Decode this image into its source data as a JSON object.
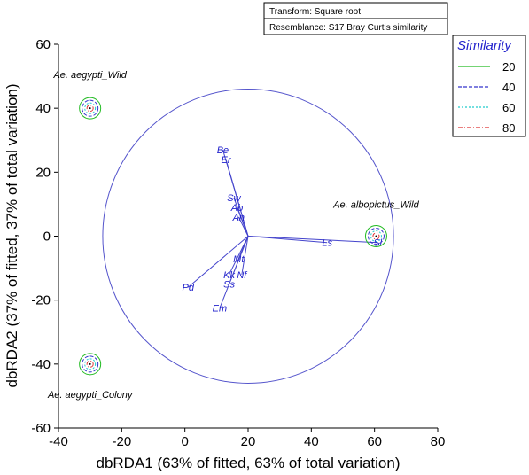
{
  "chart_data": {
    "type": "scatter",
    "title": "",
    "xlabel": "dbRDA1 (63% of fitted, 63% of total variation)",
    "ylabel": "dbRDA2 (37% of fitted, 37% of total variation)",
    "xlim": [
      -40,
      80
    ],
    "ylim": [
      -60,
      60
    ],
    "xticks": [
      -40,
      -20,
      0,
      20,
      40,
      60,
      80
    ],
    "yticks": [
      -60,
      -40,
      -20,
      0,
      20,
      40,
      60
    ],
    "info_box": [
      "Transform: Square root",
      "Resemblance: S17 Bray Curtis similarity"
    ],
    "legend": {
      "title": "Similarity",
      "placement": "top-right",
      "entries": [
        {
          "label": "20",
          "color": "#22bb22",
          "style": "solid"
        },
        {
          "label": "40",
          "color": "#3333cc",
          "style": "dashed"
        },
        {
          "label": "60",
          "color": "#22cccc",
          "style": "dotted"
        },
        {
          "label": "80",
          "color": "#dd3333",
          "style": "dashdot"
        }
      ]
    },
    "correlation_circle": {
      "center": [
        20,
        0
      ],
      "radius": 46,
      "color": "#5555cc"
    },
    "vector_origin": [
      20,
      0
    ],
    "points": [
      {
        "label": "Ae. aegypti_Wild",
        "x": -30,
        "y": 40
      },
      {
        "label": "Ae. albopictus_Wild",
        "x": 60.5,
        "y": 0
      },
      {
        "label": "Ae. aegypti_Colony",
        "x": -30,
        "y": -40
      }
    ],
    "vectors": [
      {
        "label": "Be",
        "x": 12,
        "y": 27
      },
      {
        "label": "Er",
        "x": 13,
        "y": 24
      },
      {
        "label": "Sw",
        "x": 15.5,
        "y": 12
      },
      {
        "label": "Ab",
        "x": 16.5,
        "y": 9
      },
      {
        "label": "An",
        "x": 17,
        "y": 6
      },
      {
        "label": "Ls",
        "x": 45,
        "y": -2
      },
      {
        "label": "Sl",
        "x": 61,
        "y": -2
      },
      {
        "label": "Mt",
        "x": 17,
        "y": -7
      },
      {
        "label": "Kk",
        "x": 14,
        "y": -12
      },
      {
        "label": "Nf",
        "x": 18,
        "y": -12
      },
      {
        "label": "Ss",
        "x": 14,
        "y": -15
      },
      {
        "label": "Pd",
        "x": 1,
        "y": -16
      },
      {
        "label": "Em",
        "x": 11,
        "y": -22.5
      }
    ],
    "colors": {
      "vector": "#4444cc",
      "vector_label": "#2222cc",
      "axis": "#000000"
    }
  }
}
